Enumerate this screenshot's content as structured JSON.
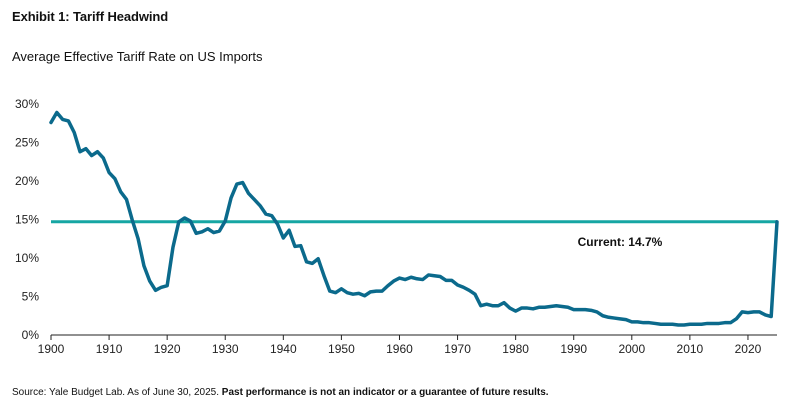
{
  "header": {
    "exhibit_title": "Exhibit 1: Tariff Headwind"
  },
  "footer": {
    "source": "Source: Yale Budget Lab. As of June 30, 2025.",
    "disclaimer": "Past performance is not an indicator or a guarantee of future results."
  },
  "colors": {
    "series": "#0b6a8c",
    "reference_line": "#16a6a3",
    "axis": "#222222"
  },
  "chart_data": {
    "type": "line",
    "title": "Average Effective Tariff Rate on US Imports",
    "xlabel": "",
    "ylabel": "",
    "xlim": [
      1900,
      2025
    ],
    "ylim": [
      0,
      30
    ],
    "grid": false,
    "legend": "none",
    "x_ticks": [
      {
        "value": 1900,
        "label": "1900"
      },
      {
        "value": 1910,
        "label": "1910"
      },
      {
        "value": 1920,
        "label": "1920"
      },
      {
        "value": 1930,
        "label": "1930"
      },
      {
        "value": 1940,
        "label": "1940"
      },
      {
        "value": 1950,
        "label": "1950"
      },
      {
        "value": 1960,
        "label": "1960"
      },
      {
        "value": 1970,
        "label": "1970"
      },
      {
        "value": 1980,
        "label": "1980"
      },
      {
        "value": 1990,
        "label": "1990"
      },
      {
        "value": 2000,
        "label": "2000"
      },
      {
        "value": 2010,
        "label": "2010"
      },
      {
        "value": 2020,
        "label": "2020"
      }
    ],
    "y_ticks": [
      {
        "value": 0,
        "label": "0%"
      },
      {
        "value": 5,
        "label": "5%"
      },
      {
        "value": 10,
        "label": "10%"
      },
      {
        "value": 15,
        "label": "15%"
      },
      {
        "value": 20,
        "label": "20%"
      },
      {
        "value": 25,
        "label": "25%"
      },
      {
        "value": 30,
        "label": "30%"
      }
    ],
    "reference_line": {
      "value": 14.7,
      "label": "Current: 14.7%"
    },
    "series": [
      {
        "x": [
          1900,
          1901,
          1902,
          1903,
          1904,
          1905,
          1906,
          1907,
          1908,
          1909,
          1910,
          1911,
          1912,
          1913,
          1914,
          1915,
          1916,
          1917,
          1918,
          1919,
          1920,
          1921,
          1922,
          1923,
          1924,
          1925,
          1926,
          1927,
          1928,
          1929,
          1930,
          1931,
          1932,
          1933,
          1934,
          1935,
          1936,
          1937,
          1938,
          1939,
          1940,
          1941,
          1942,
          1943,
          1944,
          1945,
          1946,
          1947,
          1948,
          1949,
          1950,
          1951,
          1952,
          1953,
          1954,
          1955,
          1956,
          1957,
          1958,
          1959,
          1960,
          1961,
          1962,
          1963,
          1964,
          1965,
          1966,
          1967,
          1968,
          1969,
          1970,
          1971,
          1972,
          1973,
          1974,
          1975,
          1976,
          1977,
          1978,
          1979,
          1980,
          1981,
          1982,
          1983,
          1984,
          1985,
          1986,
          1987,
          1988,
          1989,
          1990,
          1991,
          1992,
          1993,
          1994,
          1995,
          1996,
          1997,
          1998,
          1999,
          2000,
          2001,
          2002,
          2003,
          2004,
          2005,
          2006,
          2007,
          2008,
          2009,
          2010,
          2011,
          2012,
          2013,
          2014,
          2015,
          2016,
          2017,
          2018,
          2019,
          2020,
          2021,
          2022,
          2023,
          2024,
          2025
        ],
        "values": [
          27.6,
          28.9,
          28.0,
          27.8,
          26.3,
          23.8,
          24.2,
          23.3,
          23.8,
          23.0,
          21.1,
          20.3,
          18.6,
          17.6,
          14.9,
          12.5,
          9.0,
          7.0,
          5.8,
          6.2,
          6.4,
          11.4,
          14.7,
          15.2,
          14.8,
          13.2,
          13.4,
          13.8,
          13.3,
          13.5,
          14.8,
          17.8,
          19.6,
          19.8,
          18.4,
          17.6,
          16.8,
          15.7,
          15.5,
          14.4,
          12.6,
          13.6,
          11.5,
          11.6,
          9.5,
          9.3,
          9.9,
          7.7,
          5.7,
          5.5,
          6.0,
          5.5,
          5.3,
          5.4,
          5.1,
          5.6,
          5.7,
          5.7,
          6.4,
          7.0,
          7.4,
          7.2,
          7.5,
          7.3,
          7.2,
          7.8,
          7.7,
          7.6,
          7.1,
          7.1,
          6.5,
          6.2,
          5.8,
          5.3,
          3.8,
          4.0,
          3.8,
          3.8,
          4.2,
          3.5,
          3.1,
          3.5,
          3.5,
          3.4,
          3.6,
          3.6,
          3.7,
          3.8,
          3.7,
          3.6,
          3.3,
          3.3,
          3.3,
          3.2,
          3.0,
          2.5,
          2.3,
          2.2,
          2.1,
          2.0,
          1.7,
          1.7,
          1.6,
          1.6,
          1.5,
          1.4,
          1.4,
          1.4,
          1.3,
          1.3,
          1.4,
          1.4,
          1.4,
          1.5,
          1.5,
          1.5,
          1.6,
          1.6,
          2.1,
          3.0,
          2.9,
          3.0,
          3.0,
          2.6,
          2.4,
          14.7
        ]
      }
    ]
  }
}
